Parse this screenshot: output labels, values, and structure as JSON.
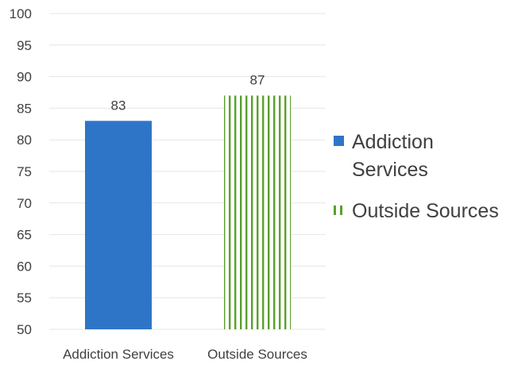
{
  "chart_data": {
    "type": "bar",
    "categories": [
      "Addiction Services",
      "Outside Sources"
    ],
    "values": [
      83,
      87
    ],
    "data_labels": [
      "83",
      "87"
    ],
    "ylim": [
      50,
      100
    ],
    "yticks": [
      "50",
      "55",
      "60",
      "65",
      "70",
      "75",
      "80",
      "85",
      "90",
      "95",
      "100"
    ],
    "grid": true,
    "legend": {
      "placement": "right",
      "entries": [
        {
          "lines": [
            "Addiction",
            "Services"
          ],
          "color": "#2e75c8",
          "pattern": "solid"
        },
        {
          "lines": [
            "Outside Sources"
          ],
          "color": "#5aa02c",
          "pattern": "vertical-stripes"
        }
      ]
    }
  }
}
